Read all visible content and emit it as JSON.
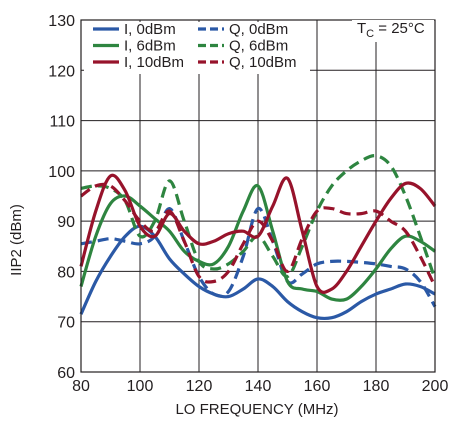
{
  "chart_data": {
    "type": "line",
    "title": "",
    "xlabel": "LO FREQUENCY (MHz)",
    "ylabel": "IIP2 (dBm)",
    "xlim": [
      80,
      200
    ],
    "ylim": [
      60,
      130
    ],
    "xticks": [
      "80",
      "100",
      "120",
      "140",
      "160",
      "180",
      "200"
    ],
    "yticks": [
      "60",
      "70",
      "80",
      "90",
      "100",
      "110",
      "120",
      "130"
    ],
    "grid": true,
    "legend_position": "top-left",
    "annotation": {
      "main": "T",
      "sub": "C",
      "rest": " = 25°C"
    },
    "series": [
      {
        "name": "I, 0dBm",
        "color": "#2b59a6",
        "dash": false,
        "x": [
          80,
          85,
          90,
          95,
          100,
          105,
          110,
          115,
          120,
          125,
          130,
          135,
          140,
          145,
          150,
          155,
          160,
          165,
          170,
          175,
          180,
          185,
          190,
          195,
          200
        ],
        "y": [
          71.5,
          78,
          83,
          87,
          89,
          87,
          82.5,
          79.5,
          77,
          75.5,
          75,
          76.5,
          78.5,
          77,
          74,
          72,
          70.8,
          70.8,
          72,
          74,
          75.5,
          76.5,
          77.5,
          77,
          75.5
        ]
      },
      {
        "name": "Q, 0dBm",
        "color": "#2b59a6",
        "dash": true,
        "x": [
          80,
          85,
          90,
          95,
          100,
          105,
          110,
          115,
          120,
          125,
          130,
          135,
          140,
          145,
          150,
          155,
          160,
          165,
          170,
          175,
          180,
          185,
          190,
          195,
          200
        ],
        "y": [
          85.5,
          86,
          86.5,
          86,
          85.5,
          87,
          92.5,
          86,
          79,
          75.5,
          76,
          83,
          92.5,
          86,
          78,
          79.5,
          81.5,
          82,
          82,
          81.8,
          81.5,
          81,
          80.5,
          78,
          73
        ]
      },
      {
        "name": "I, 6dBm",
        "color": "#2e8540",
        "dash": false,
        "x": [
          80,
          85,
          90,
          95,
          100,
          105,
          110,
          115,
          120,
          125,
          130,
          135,
          140,
          145,
          150,
          155,
          160,
          165,
          170,
          175,
          180,
          185,
          190,
          195,
          200
        ],
        "y": [
          77,
          87,
          93.5,
          95,
          93,
          90.5,
          88,
          84,
          82,
          81.5,
          85,
          92,
          97,
          88,
          78,
          76.5,
          76,
          74.5,
          74.5,
          77,
          80.5,
          84.5,
          87,
          86,
          84
        ]
      },
      {
        "name": "Q, 6dBm",
        "color": "#2e8540",
        "dash": true,
        "x": [
          80,
          85,
          90,
          95,
          100,
          105,
          110,
          115,
          120,
          125,
          130,
          135,
          140,
          145,
          150,
          155,
          160,
          165,
          170,
          175,
          180,
          185,
          190,
          195,
          200
        ],
        "y": [
          96.5,
          97,
          96.5,
          94,
          87,
          90,
          98,
          90,
          82,
          80.5,
          81.5,
          84,
          87,
          83,
          79,
          85,
          92,
          97,
          100,
          102,
          103,
          101,
          95,
          87,
          78.5
        ]
      },
      {
        "name": "I, 10dBm",
        "color": "#97132b",
        "dash": false,
        "x": [
          80,
          85,
          90,
          95,
          100,
          105,
          110,
          115,
          120,
          125,
          130,
          135,
          140,
          145,
          150,
          155,
          160,
          165,
          170,
          175,
          180,
          185,
          190,
          195,
          200
        ],
        "y": [
          81,
          92,
          99,
          96,
          89,
          87,
          91.5,
          88,
          85.5,
          86,
          87.5,
          88,
          87,
          93,
          98.5,
          88,
          77,
          76.5,
          80,
          85,
          90,
          94.5,
          97.5,
          96.5,
          93
        ]
      },
      {
        "name": "Q, 10dBm",
        "color": "#97132b",
        "dash": true,
        "x": [
          80,
          85,
          90,
          95,
          100,
          105,
          110,
          115,
          120,
          125,
          130,
          135,
          140,
          145,
          150,
          155,
          160,
          165,
          170,
          175,
          180,
          185,
          190,
          195,
          200
        ],
        "y": [
          95,
          97,
          97,
          94,
          90,
          88,
          92,
          86,
          79,
          78,
          80,
          85.5,
          90,
          86,
          80,
          86.5,
          92,
          92.5,
          91.5,
          91.5,
          92,
          90,
          88,
          83,
          77
        ]
      }
    ]
  }
}
